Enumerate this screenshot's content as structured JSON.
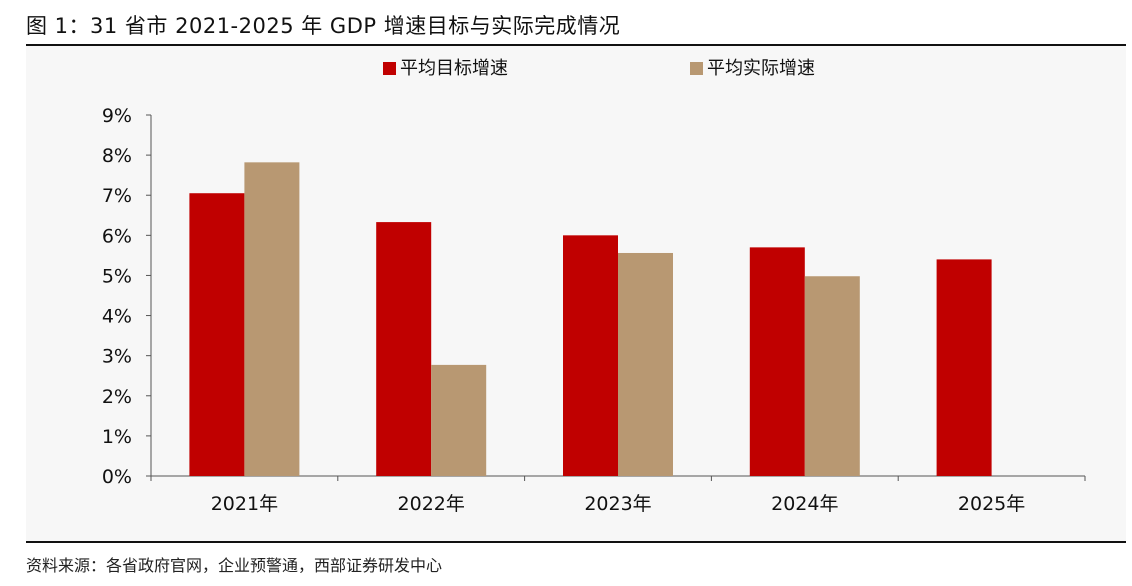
{
  "figure": {
    "title": "图 1：31 省市 2021-2025 年 GDP 增速目标与实际完成情况",
    "source": "资料来源：各省政府官网，企业预警通，西部证券研发中心"
  },
  "chart_data": {
    "type": "bar",
    "categories": [
      "2021年",
      "2022年",
      "2023年",
      "2024年",
      "2025年"
    ],
    "series": [
      {
        "name": "平均目标增速",
        "color": "#c00000",
        "values": [
          7.05,
          6.33,
          6.0,
          5.7,
          5.4
        ]
      },
      {
        "name": "平均实际增速",
        "color": "#b89872",
        "values": [
          7.82,
          2.77,
          5.56,
          4.98,
          null
        ]
      }
    ],
    "ylim": [
      0,
      9
    ],
    "yticks": [
      "0%",
      "1%",
      "2%",
      "3%",
      "4%",
      "5%",
      "6%",
      "7%",
      "8%",
      "9%"
    ],
    "legend_position": "top-center",
    "grid": false
  }
}
